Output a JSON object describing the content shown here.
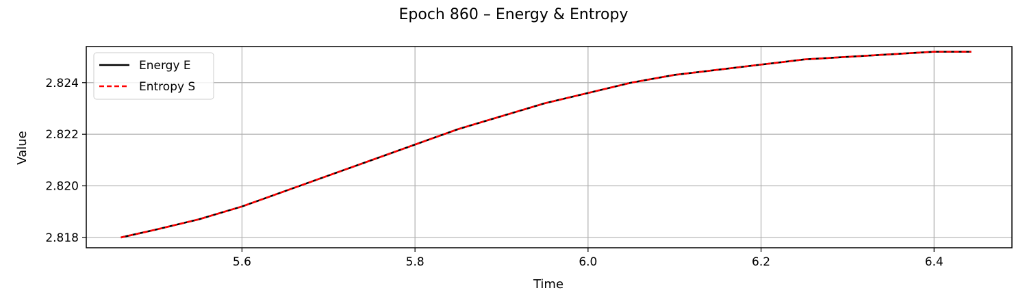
{
  "chart_data": {
    "type": "line",
    "title": "Epoch 860 – Energy & Entropy",
    "xlabel": "Time",
    "ylabel": "Value",
    "xlim": [
      5.42,
      6.49
    ],
    "ylim": [
      2.8176,
      2.8254
    ],
    "xticks": [
      5.6,
      5.8,
      6.0,
      6.2,
      6.4
    ],
    "xtick_labels": [
      "5.6",
      "5.8",
      "6.0",
      "6.2",
      "6.4"
    ],
    "yticks": [
      2.818,
      2.82,
      2.822,
      2.824
    ],
    "ytick_labels": [
      "2.818",
      "2.820",
      "2.822",
      "2.824"
    ],
    "grid": true,
    "legend_position": "upper-left",
    "series": [
      {
        "name": "Energy E",
        "color": "#000000",
        "line_style": "solid",
        "x": [
          5.46,
          5.5,
          5.55,
          5.6,
          5.65,
          5.7,
          5.75,
          5.8,
          5.85,
          5.9,
          5.95,
          6.0,
          6.05,
          6.1,
          6.15,
          6.2,
          6.25,
          6.3,
          6.35,
          6.4,
          6.443
        ],
        "y": [
          2.818,
          2.8183,
          2.8187,
          2.8192,
          2.8198,
          2.8204,
          2.821,
          2.8216,
          2.8222,
          2.8227,
          2.8232,
          2.8236,
          2.824,
          2.8243,
          2.8245,
          2.8247,
          2.8249,
          2.825,
          2.8251,
          2.8252,
          2.8252
        ]
      },
      {
        "name": "Entropy S",
        "color": "#ff0000",
        "line_style": "dashed",
        "x": [
          5.46,
          5.5,
          5.55,
          5.6,
          5.65,
          5.7,
          5.75,
          5.8,
          5.85,
          5.9,
          5.95,
          6.0,
          6.05,
          6.1,
          6.15,
          6.2,
          6.25,
          6.3,
          6.35,
          6.4,
          6.443
        ],
        "y": [
          2.818,
          2.8183,
          2.8187,
          2.8192,
          2.8198,
          2.8204,
          2.821,
          2.8216,
          2.8222,
          2.8227,
          2.8232,
          2.8236,
          2.824,
          2.8243,
          2.8245,
          2.8247,
          2.8249,
          2.825,
          2.8251,
          2.8252,
          2.8252
        ]
      }
    ]
  }
}
